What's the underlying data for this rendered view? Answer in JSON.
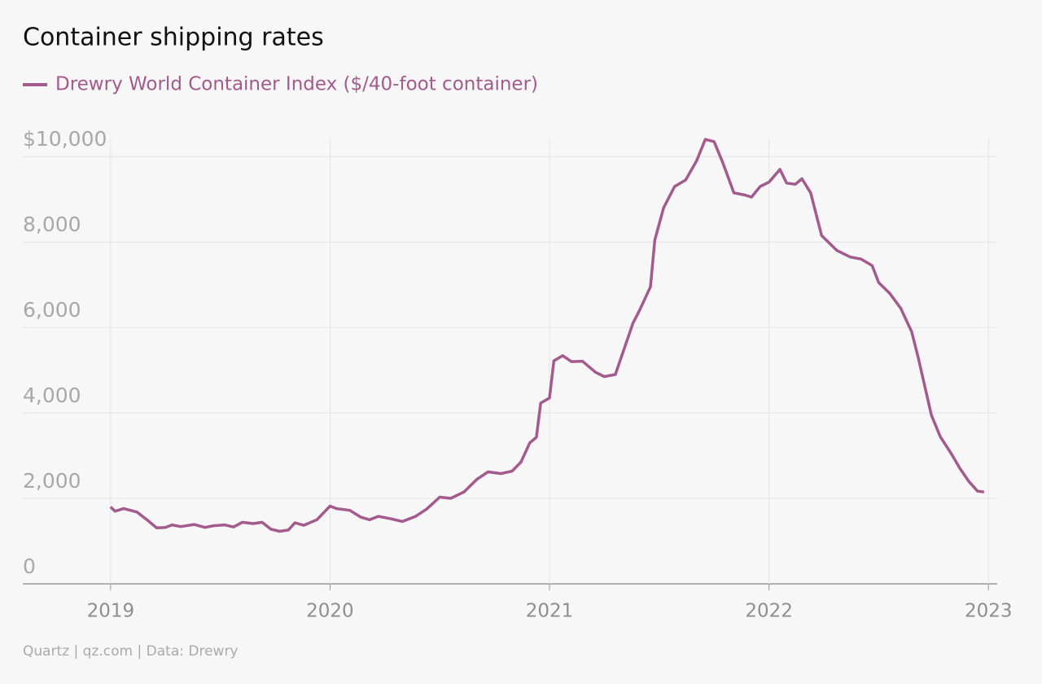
{
  "chart_data": {
    "type": "line",
    "title": "Container shipping rates",
    "source": "Quartz | qz.com | Data: Drewry",
    "x": [
      2019.0,
      2019.02,
      2019.06,
      2019.12,
      2019.17,
      2019.21,
      2019.25,
      2019.28,
      2019.32,
      2019.38,
      2019.43,
      2019.47,
      2019.52,
      2019.56,
      2019.6,
      2019.65,
      2019.69,
      2019.73,
      2019.77,
      2019.81,
      2019.84,
      2019.88,
      2019.94,
      2020.0,
      2020.03,
      2020.09,
      2020.14,
      2020.18,
      2020.22,
      2020.27,
      2020.33,
      2020.39,
      2020.44,
      2020.5,
      2020.55,
      2020.61,
      2020.67,
      2020.72,
      2020.78,
      2020.83,
      2020.87,
      2020.91,
      2020.94,
      2020.96,
      2021.0,
      2021.02,
      2021.06,
      2021.1,
      2021.15,
      2021.21,
      2021.25,
      2021.3,
      2021.34,
      2021.38,
      2021.41,
      2021.46,
      2021.48,
      2021.52,
      2021.57,
      2021.62,
      2021.67,
      2021.71,
      2021.75,
      2021.79,
      2021.84,
      2021.89,
      2021.92,
      2021.96,
      2022.0,
      2022.05,
      2022.08,
      2022.12,
      2022.15,
      2022.19,
      2022.24,
      2022.31,
      2022.37,
      2022.42,
      2022.47,
      2022.5,
      2022.55,
      2022.6,
      2022.65,
      2022.68,
      2022.74,
      2022.78,
      2022.83,
      2022.87,
      2022.91,
      2022.95,
      2022.98
    ],
    "series": [
      {
        "name": "Drewry World Container Index ($/40-foot container)",
        "color": "#a35a8d",
        "values": [
          1800,
          1700,
          1760,
          1680,
          1480,
          1310,
          1320,
          1380,
          1340,
          1390,
          1320,
          1360,
          1380,
          1330,
          1440,
          1410,
          1440,
          1280,
          1230,
          1260,
          1430,
          1370,
          1500,
          1820,
          1760,
          1720,
          1560,
          1500,
          1580,
          1530,
          1460,
          1580,
          1750,
          2030,
          2000,
          2150,
          2450,
          2620,
          2580,
          2640,
          2850,
          3300,
          3430,
          4230,
          4350,
          5220,
          5340,
          5200,
          5210,
          4950,
          4850,
          4900,
          5500,
          6100,
          6400,
          6950,
          8050,
          8800,
          9300,
          9450,
          9900,
          10400,
          10350,
          9850,
          9150,
          9100,
          9050,
          9300,
          9400,
          9700,
          9380,
          9350,
          9480,
          9150,
          8150,
          7800,
          7650,
          7600,
          7450,
          7050,
          6800,
          6450,
          5900,
          5300,
          3950,
          3450,
          3050,
          2700,
          2400,
          2170,
          2150
        ]
      }
    ],
    "xlim": [
      2018.6,
      2023.04
    ],
    "xticks": [
      2019,
      2020,
      2021,
      2022,
      2023
    ],
    "ylim": [
      0,
      10500
    ],
    "yticks": [
      0,
      {
        "value": 2000,
        "label": "2,000"
      },
      {
        "value": 4000,
        "label": "4,000"
      },
      {
        "value": 6000,
        "label": "6,000"
      },
      {
        "value": 8000,
        "label": "8,000"
      },
      {
        "value": 10000,
        "label": "$10,000"
      }
    ],
    "grid": true
  }
}
